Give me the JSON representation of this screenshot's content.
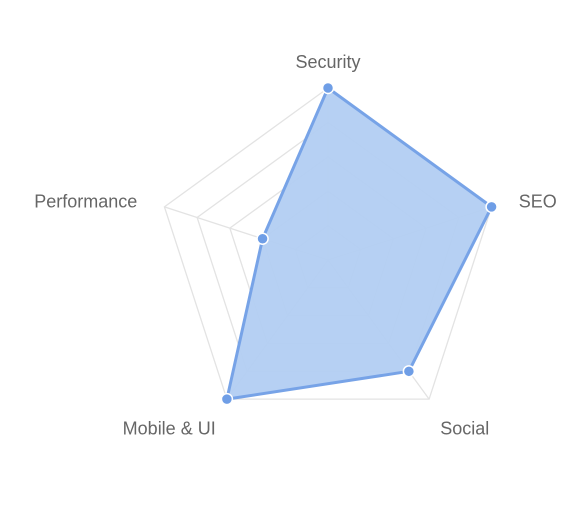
{
  "chart_data": {
    "type": "radar",
    "categories": [
      "Security",
      "SEO",
      "Social",
      "Mobile & UI",
      "Performance"
    ],
    "series": [
      {
        "values": [
          100,
          100,
          80,
          100,
          40
        ]
      }
    ],
    "rlim": [
      0,
      100
    ],
    "grid_rings": 5,
    "grid": true,
    "legend": "none",
    "colors": {
      "line": "#77a3e7",
      "fill": "#b2cdf2",
      "point": "#6f9ee6",
      "grid": "#e3e3e3",
      "label": "#666666"
    }
  }
}
